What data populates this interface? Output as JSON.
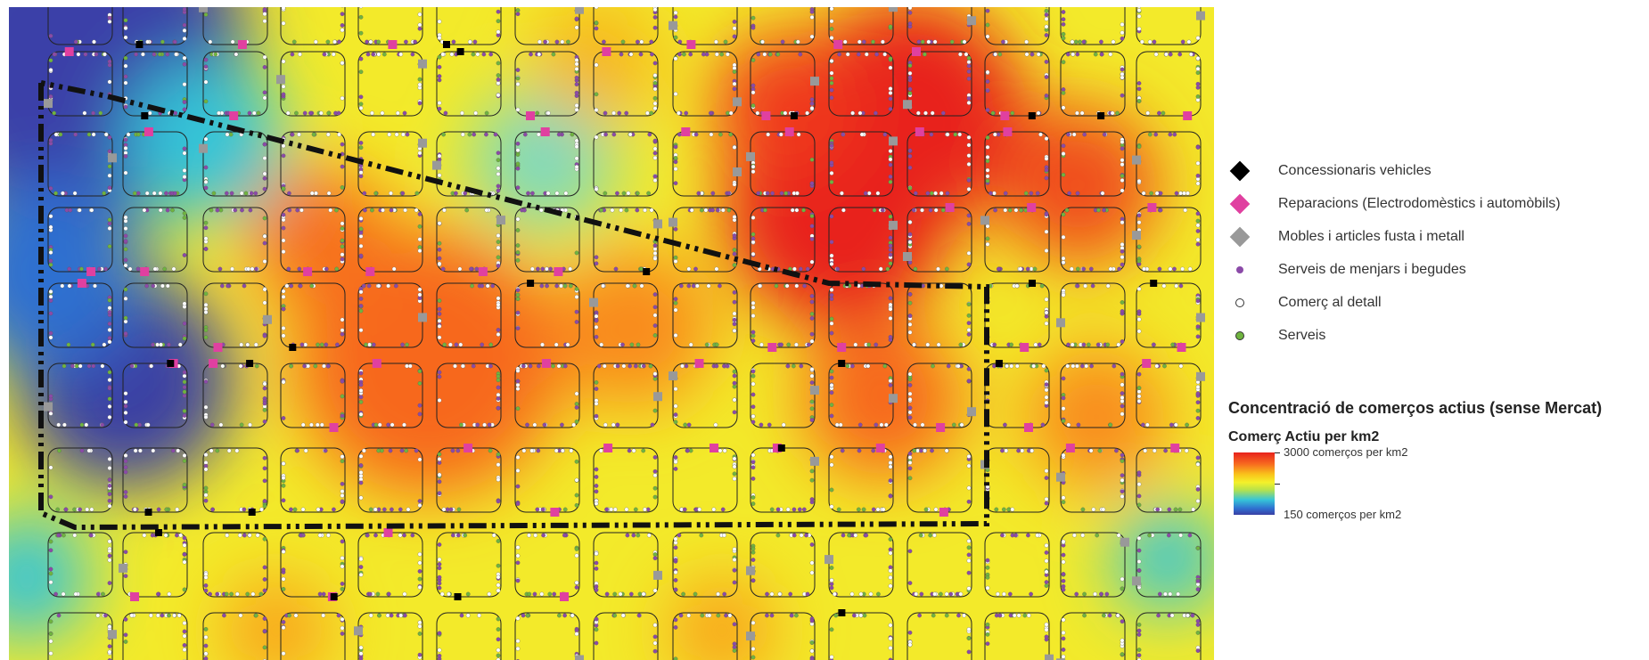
{
  "legend": {
    "items": [
      {
        "label": "Concessionaris vehicles",
        "symbol": "diamond",
        "color": "#000000",
        "icon": "black-diamond-icon"
      },
      {
        "label": "Reparacions (Electrodomèstics i automòbils)",
        "symbol": "diamond",
        "color": "#e040a0",
        "icon": "magenta-diamond-icon"
      },
      {
        "label": "Mobles i articles fusta i metall",
        "symbol": "diamond",
        "color": "#999999",
        "icon": "gray-diamond-icon"
      },
      {
        "label": "Serveis de menjars i begudes",
        "symbol": "dot",
        "color": "#8b4aa8",
        "icon": "purple-dot-icon"
      },
      {
        "label": "Comerç al detall",
        "symbol": "dot",
        "color": "#ffffff",
        "icon": "white-dot-icon"
      },
      {
        "label": "Serveis",
        "symbol": "dot",
        "color": "#6fb43f",
        "icon": "green-dot-icon"
      }
    ],
    "title": "Concentració de comerços actius (sense Mercat)",
    "subtitle": "Comerç Actiu per km2",
    "ramp_max": "3000 comerços per km2",
    "ramp_min": "150 comerços per km2"
  }
}
